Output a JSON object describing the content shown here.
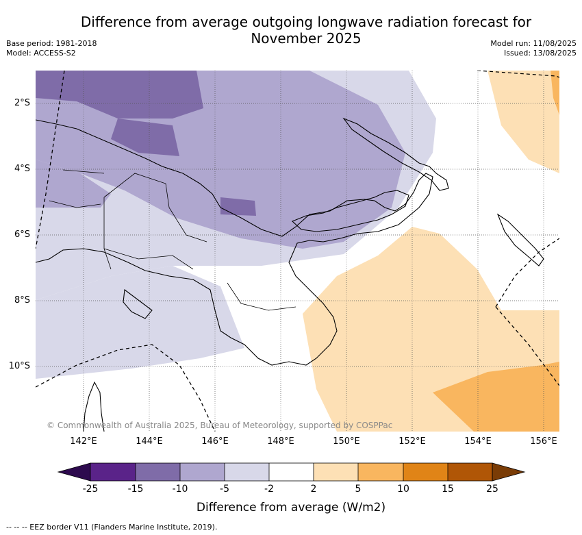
{
  "title": "Difference from average outgoing longwave radiation forecast for November 2025",
  "title_line1": "Difference from average outgoing longwave radiation forecast for",
  "title_line2": "November 2025",
  "meta_left": {
    "base_period": "Base period: 1981-2018",
    "model": "Model: ACCESS-S2"
  },
  "meta_right": {
    "model_run": "Model run: 11/08/2025",
    "issued": "Issued: 13/08/2025"
  },
  "map": {
    "region": "Papua New Guinea",
    "lon_ticks": [
      "142°E",
      "144°E",
      "146°E",
      "148°E",
      "150°E",
      "152°E",
      "154°E",
      "156°E"
    ],
    "lat_ticks": [
      "2°S",
      "4°S",
      "6°S",
      "8°S",
      "10°S"
    ],
    "lon_range": [
      140.5,
      156.5
    ],
    "lat_range": [
      -1.0,
      -12.0
    ],
    "copyright": "© Commonwealth of Australia 2025, Bureau of Meteorology, supported by COSPPac"
  },
  "colorbar": {
    "title": "Difference from average (W/m2)",
    "boundaries": [
      "-25",
      "-15",
      "-10",
      "-5",
      "-2",
      "2",
      "5",
      "10",
      "15",
      "25"
    ],
    "colors": [
      "#2d0a4e",
      "#5a2389",
      "#7f6ca8",
      "#afa7cf",
      "#d8d8e9",
      "#ffffff",
      "#fde0b5",
      "#f9b65f",
      "#e08417",
      "#b05606",
      "#7a3c06"
    ]
  },
  "footnote": "-- -- -- EEZ border V11 (Flanders Marine Institute, 2019)."
}
